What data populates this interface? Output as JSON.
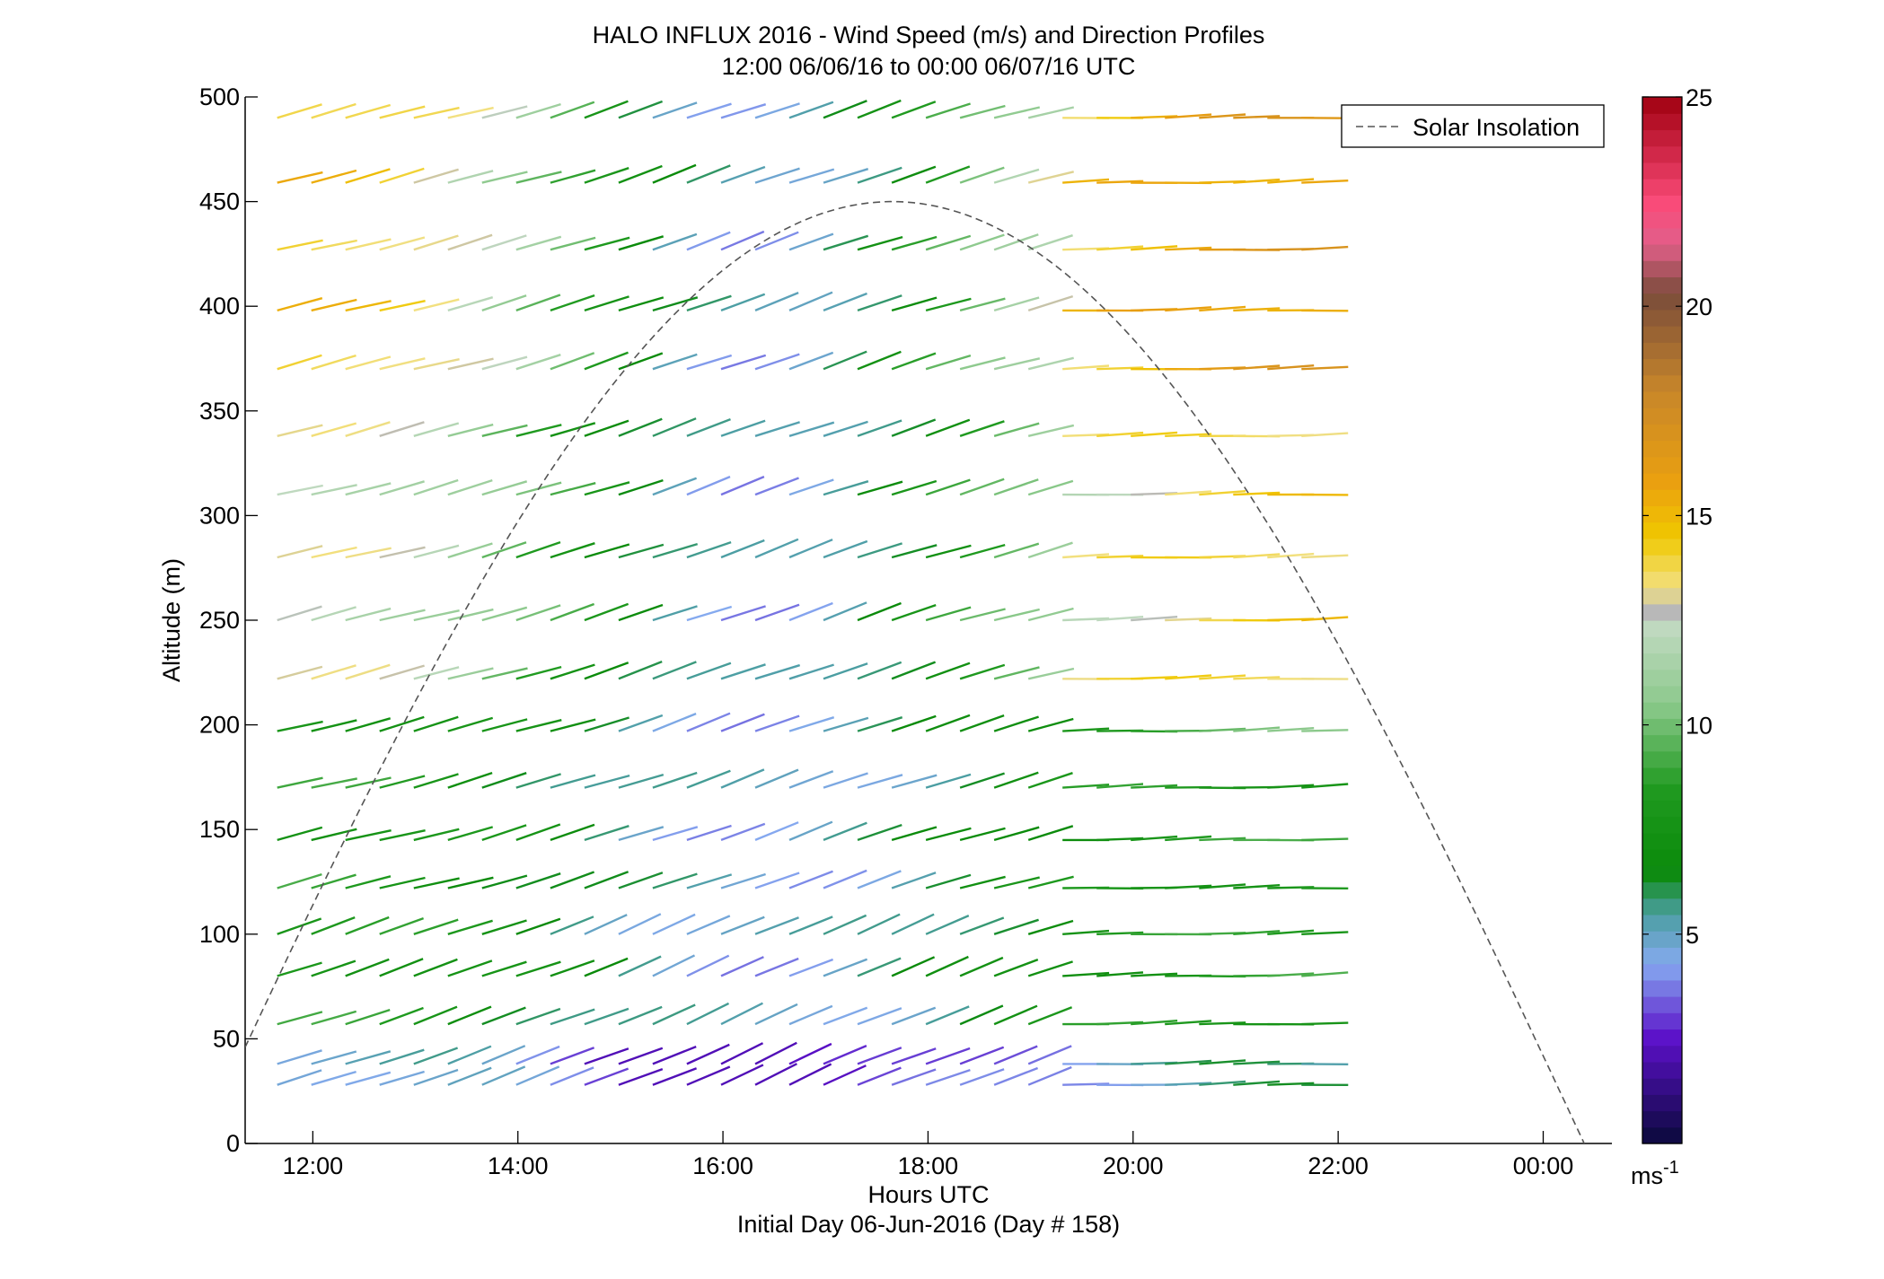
{
  "title": {
    "line1": "HALO INFLUX 2016 - Wind Speed (m/s) and Direction Profiles",
    "line2": "12:00 06/06/16 to 00:00 06/07/16  UTC"
  },
  "xaxis": {
    "label": "Hours UTC",
    "sublabel": "Initial Day 06-Jun-2016 (Day # 158)",
    "ticks": [
      {
        "hour": 12,
        "label": "12:00"
      },
      {
        "hour": 14,
        "label": "14:00"
      },
      {
        "hour": 16,
        "label": "16:00"
      },
      {
        "hour": 18,
        "label": "18:00"
      },
      {
        "hour": 20,
        "label": "20:00"
      },
      {
        "hour": 22,
        "label": "22:00"
      },
      {
        "hour": 24,
        "label": "00:00"
      }
    ]
  },
  "yaxis": {
    "label": "Altitude (m)",
    "ticks": [
      "0",
      "50",
      "100",
      "150",
      "200",
      "250",
      "300",
      "350",
      "400",
      "450",
      "500"
    ]
  },
  "legend": {
    "label": "Solar Insolation",
    "position": "top-right",
    "style": "dashed"
  },
  "colorbar": {
    "range": [
      0,
      25
    ],
    "ticks": [
      "5",
      "10",
      "15",
      "20",
      "25"
    ],
    "unit": "ms",
    "unit_exp": "-1"
  },
  "chart_data": {
    "type": "vector-field",
    "x_range_hours_utc": [
      11.34,
      24.67
    ],
    "y_range_m": [
      0,
      500
    ],
    "grid": false,
    "altitudes_m": [
      28,
      38,
      57,
      80,
      100,
      122,
      145,
      170,
      197,
      222,
      250,
      280,
      310,
      338,
      370,
      398,
      427,
      459,
      490
    ],
    "time_start_hours": 11.67,
    "time_step_hours": 0.333,
    "time_count": 31,
    "wind_speed_colormap": [
      {
        "v": 0,
        "color": "#0a0a3a"
      },
      {
        "v": 2.5,
        "color": "#5b10c8"
      },
      {
        "v": 4.3,
        "color": "#86aaf0"
      },
      {
        "v": 5.5,
        "color": "#4a9ea0"
      },
      {
        "v": 6.5,
        "color": "#0a8a0a"
      },
      {
        "v": 8.5,
        "color": "#209a20"
      },
      {
        "v": 10.5,
        "color": "#8cc98c"
      },
      {
        "v": 12.3,
        "color": "#bfd9bf"
      },
      {
        "v": 12.7,
        "color": "#b8b8b8"
      },
      {
        "v": 13.3,
        "color": "#f2e080"
      },
      {
        "v": 14.5,
        "color": "#f0c800"
      },
      {
        "v": 15.8,
        "color": "#eaa010"
      },
      {
        "v": 18,
        "color": "#c7862a"
      },
      {
        "v": 20.3,
        "color": "#7a4c3a"
      },
      {
        "v": 21.5,
        "color": "#e25f8a"
      },
      {
        "v": 22.5,
        "color": "#fa4a78"
      },
      {
        "v": 25,
        "color": "#a00010"
      }
    ],
    "solar_insolation": {
      "peak_hour": 17.65,
      "half_width_hours": 6.75,
      "peak_altitude_m": 450
    }
  }
}
